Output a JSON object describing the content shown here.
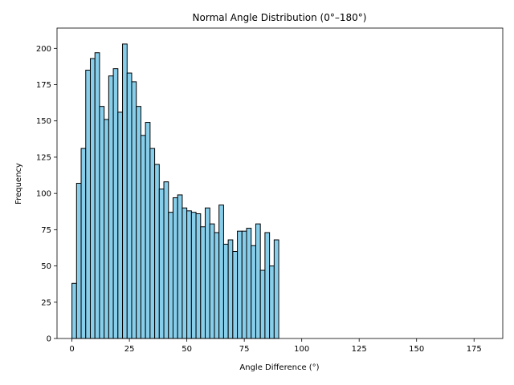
{
  "chart_data": {
    "type": "bar",
    "title": "Normal Angle Distribution (0°–180°)",
    "xlabel": "Angle Difference (°)",
    "ylabel": "Frequency",
    "xlim": [
      -6.5,
      187.5
    ],
    "ylim": [
      0,
      214
    ],
    "xticks": [
      0,
      25,
      50,
      75,
      100,
      125,
      150,
      175
    ],
    "yticks": [
      0,
      25,
      50,
      75,
      100,
      125,
      150,
      175,
      200
    ],
    "bin_width": 2,
    "bins_start": [
      0,
      2,
      4,
      6,
      8,
      10,
      12,
      14,
      16,
      18,
      20,
      22,
      24,
      26,
      28,
      30,
      32,
      34,
      36,
      38,
      40,
      42,
      44,
      46,
      48,
      50,
      52,
      54,
      56,
      58,
      60,
      62,
      64,
      66,
      68,
      70,
      72,
      74,
      76,
      78,
      80,
      82,
      84,
      86,
      88
    ],
    "values": [
      38,
      107,
      131,
      185,
      193,
      197,
      160,
      151,
      181,
      186,
      156,
      203,
      183,
      177,
      160,
      140,
      149,
      131,
      120,
      103,
      108,
      87,
      97,
      99,
      90,
      88,
      87,
      86,
      77,
      90,
      79,
      73,
      92,
      65,
      68,
      60,
      74,
      74,
      76,
      64,
      79,
      47,
      73,
      50,
      68
    ],
    "grid": false,
    "colors": {
      "bar_fill": "#87ceeb",
      "bar_edge": "#000000"
    }
  }
}
